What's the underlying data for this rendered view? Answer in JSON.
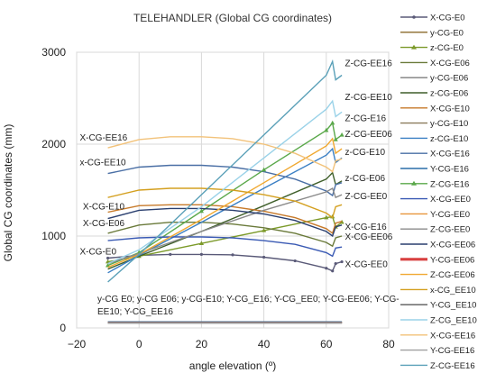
{
  "chart_data": {
    "type": "line",
    "title": "TELEHANDLER (Global CG coordinates)",
    "xlabel": "angle elevation (º)",
    "ylabel": "Global CG coordinates (mm)",
    "xlim": [
      -20,
      80
    ],
    "ylim": [
      0,
      3000
    ],
    "xticks": [
      -20,
      0,
      20,
      40,
      60,
      80
    ],
    "yticks": [
      0,
      1000,
      2000,
      3000
    ],
    "grid": true,
    "legend_position": "right",
    "bottom_note": "y-CG E0; y-CG E06; y-CG-E10; Y-CG_E16; Y-CG_EE0; Y-CG-EE06; Y-CG-EE10; Y-CG_EE16",
    "series": [
      {
        "name": "X-CG-E0",
        "color": "#5a5a78",
        "marker": "dot",
        "x": [
          -10,
          0,
          10,
          20,
          30,
          40,
          50,
          60,
          62,
          63,
          65
        ],
        "y": [
          760,
          790,
          800,
          800,
          795,
          770,
          730,
          650,
          620,
          700,
          720
        ]
      },
      {
        "name": "y-CG-E0",
        "color": "#8a6a2a",
        "x": [
          -10,
          0,
          20,
          40,
          60,
          65
        ],
        "y": [
          60,
          60,
          60,
          60,
          60,
          60
        ]
      },
      {
        "name": "z-CG-E0",
        "color": "#7c9a2a",
        "marker": "triangle",
        "x": [
          -10,
          0,
          20,
          40,
          60,
          62,
          63,
          65
        ],
        "y": [
          720,
          780,
          920,
          1060,
          1200,
          1210,
          1100,
          1150
        ]
      },
      {
        "name": "X-CG-E06",
        "color": "#6a7a3a",
        "x": [
          -10,
          0,
          10,
          20,
          30,
          40,
          50,
          60,
          62,
          63,
          65
        ],
        "y": [
          1030,
          1120,
          1150,
          1150,
          1130,
          1090,
          1030,
          930,
          890,
          980,
          1000
        ]
      },
      {
        "name": "y-CG-E06",
        "color": "#7e7e7e",
        "x": [
          -10,
          0,
          20,
          40,
          60,
          65
        ],
        "y": [
          62,
          62,
          62,
          62,
          62,
          62
        ]
      },
      {
        "name": "z-CG-E06",
        "color": "#3f5f2a",
        "x": [
          -10,
          0,
          20,
          40,
          60,
          62,
          63,
          65
        ],
        "y": [
          640,
          780,
          1050,
          1330,
          1620,
          1690,
          1560,
          1600
        ]
      },
      {
        "name": "X-CG-E10",
        "color": "#c77a2a",
        "x": [
          -10,
          0,
          10,
          20,
          30,
          40,
          50,
          60,
          62,
          63,
          65
        ],
        "y": [
          1260,
          1330,
          1340,
          1340,
          1320,
          1270,
          1200,
          1080,
          1030,
          1140,
          1160
        ]
      },
      {
        "name": "y-CG-E10",
        "color": "#8b7b5b",
        "x": [
          -10,
          0,
          20,
          40,
          60,
          65
        ],
        "y": [
          64,
          64,
          64,
          64,
          64,
          64
        ]
      },
      {
        "name": "z-CG-E10",
        "color": "#3a7fc4",
        "x": [
          -10,
          0,
          20,
          40,
          60,
          62,
          63,
          65
        ],
        "y": [
          600,
          790,
          1150,
          1520,
          1880,
          1950,
          1800,
          1850
        ]
      },
      {
        "name": "X-CG-E16",
        "color": "#4a6fa5",
        "x": [
          -10,
          0,
          10,
          20,
          30,
          40,
          50,
          60,
          62,
          63,
          65
        ],
        "y": [
          1680,
          1750,
          1770,
          1770,
          1750,
          1700,
          1620,
          1490,
          1440,
          1560,
          1580
        ]
      },
      {
        "name": "Y-CG-E16",
        "color": "#2a6fa8",
        "x": [
          -10,
          0,
          20,
          40,
          60,
          65
        ],
        "y": [
          66,
          66,
          66,
          66,
          66,
          66
        ]
      },
      {
        "name": "Z-CG-E16",
        "color": "#5aa84a",
        "marker": "triangle",
        "x": [
          -10,
          0,
          20,
          40,
          60,
          62,
          63,
          65
        ],
        "y": [
          680,
          820,
          1270,
          1720,
          2150,
          2230,
          2050,
          2100
        ]
      },
      {
        "name": "X-CG-EE0",
        "color": "#3a5ab4",
        "x": [
          -10,
          0,
          10,
          20,
          30,
          40,
          50,
          60,
          62,
          63,
          65
        ],
        "y": [
          950,
          980,
          990,
          990,
          980,
          950,
          910,
          820,
          780,
          870,
          880
        ]
      },
      {
        "name": "Y-CG-EE0",
        "color": "#e8943a",
        "x": [
          -10,
          0,
          20,
          40,
          60,
          65
        ],
        "y": [
          58,
          58,
          58,
          58,
          58,
          58
        ]
      },
      {
        "name": "Z-CG-EE0",
        "color": "#8a8a8a",
        "x": [
          -10,
          0,
          20,
          40,
          60,
          62,
          63,
          65
        ],
        "y": [
          700,
          810,
          1050,
          1280,
          1480,
          1520,
          1420,
          1450
        ]
      },
      {
        "name": "X-CG-EE06",
        "color": "#2a3f6f",
        "x": [
          -10,
          0,
          10,
          20,
          30,
          40,
          50,
          60,
          62,
          63,
          65
        ],
        "y": [
          1190,
          1280,
          1300,
          1300,
          1280,
          1240,
          1170,
          1050,
          1000,
          1100,
          1120
        ]
      },
      {
        "name": "Y-CG-EE06",
        "color": "#d84040",
        "x": [
          -10,
          0,
          20,
          40,
          60,
          65
        ],
        "y": [
          56,
          56,
          56,
          56,
          56,
          56
        ]
      },
      {
        "name": "Z-CG-EE06",
        "color": "#f0a830",
        "x": [
          -10,
          0,
          20,
          40,
          60,
          62,
          63,
          65
        ],
        "y": [
          660,
          800,
          1180,
          1580,
          1980,
          2060,
          1900,
          1950
        ]
      },
      {
        "name": "x-CG_EE10",
        "color": "#d4a020",
        "x": [
          -10,
          0,
          10,
          20,
          30,
          40,
          50,
          60,
          62,
          63,
          65
        ],
        "y": [
          1420,
          1500,
          1520,
          1520,
          1500,
          1450,
          1380,
          1250,
          1200,
          1320,
          1340
        ]
      },
      {
        "name": "Y-CG_EE10",
        "color": "#5a5a5a",
        "x": [
          -10,
          0,
          20,
          40,
          60,
          65
        ],
        "y": [
          54,
          54,
          54,
          54,
          54,
          54
        ]
      },
      {
        "name": "Z-CG_EE10",
        "color": "#9ad2e8",
        "x": [
          -10,
          0,
          20,
          40,
          60,
          62,
          63,
          65
        ],
        "y": [
          700,
          850,
          1320,
          1850,
          2380,
          2470,
          2300,
          2350
        ]
      },
      {
        "name": "X-CG-EE16",
        "color": "#f2c27a",
        "x": [
          -10,
          0,
          10,
          20,
          30,
          40,
          50,
          60,
          62,
          63,
          65
        ],
        "y": [
          1960,
          2050,
          2080,
          2080,
          2060,
          2000,
          1900,
          1750,
          1700,
          1820,
          1840
        ]
      },
      {
        "name": "Y-CG-EE16",
        "color": "#a0a0a0",
        "x": [
          -10,
          0,
          20,
          40,
          60,
          65
        ],
        "y": [
          52,
          52,
          52,
          52,
          52,
          52
        ]
      },
      {
        "name": "Z-CG-EE16",
        "color": "#5aa0b8",
        "x": [
          -10,
          0,
          20,
          40,
          60,
          62,
          63,
          65
        ],
        "y": [
          500,
          800,
          1450,
          2100,
          2750,
          2900,
          2700,
          2750
        ]
      }
    ],
    "annotations": [
      {
        "text": "Z-CG-EE16",
        "x": 66,
        "y": 2850
      },
      {
        "text": "Z-CG-EE10",
        "x": 66,
        "y": 2480
      },
      {
        "text": "Z-CG-E16",
        "x": 66,
        "y": 2250
      },
      {
        "text": "Z-CG-EE06",
        "x": 66,
        "y": 2080
      },
      {
        "text": "z-CG-E10",
        "x": 66,
        "y": 1880
      },
      {
        "text": "z-CG-E06",
        "x": 66,
        "y": 1600
      },
      {
        "text": "Z-CG-EE0",
        "x": 66,
        "y": 1400
      },
      {
        "text": "X-CG-E16",
        "x": 66,
        "y": 1070
      },
      {
        "text": "X-CG-EE06",
        "x": 66,
        "y": 960
      },
      {
        "text": "X-CG-EE0",
        "x": 66,
        "y": 660
      },
      {
        "text": "X-CG-EE16",
        "x": -19,
        "y": 2040
      },
      {
        "text": "x-CG-EE10",
        "x": -19,
        "y": 1770
      },
      {
        "text": "X-CG-E10",
        "x": -18,
        "y": 1290
      },
      {
        "text": "X-CG-E06",
        "x": -18,
        "y": 1110
      },
      {
        "text": "X-CG-E0",
        "x": -19,
        "y": 800
      }
    ]
  }
}
